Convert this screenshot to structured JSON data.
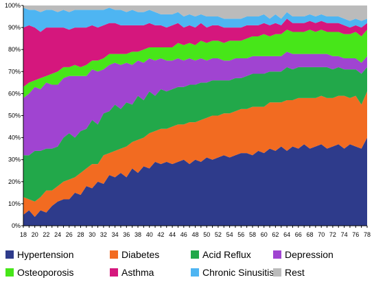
{
  "chart_data": {
    "type": "area",
    "stacked": true,
    "normalized_percent": true,
    "title": "",
    "xlabel": "",
    "ylabel": "",
    "ylim": [
      0,
      100
    ],
    "x": [
      18,
      19,
      20,
      21,
      22,
      23,
      24,
      25,
      26,
      27,
      28,
      29,
      30,
      31,
      32,
      33,
      34,
      35,
      36,
      37,
      38,
      39,
      40,
      41,
      42,
      43,
      44,
      45,
      46,
      47,
      48,
      49,
      50,
      51,
      52,
      53,
      54,
      55,
      56,
      57,
      58,
      59,
      60,
      61,
      62,
      63,
      64,
      65,
      66,
      67,
      68,
      69,
      70,
      71,
      72,
      73,
      74,
      75,
      76,
      77,
      78
    ],
    "x_tick_labels": [
      "18",
      "20",
      "22",
      "24",
      "26",
      "28",
      "30",
      "32",
      "34",
      "36",
      "38",
      "40",
      "42",
      "44",
      "46",
      "48",
      "50",
      "52",
      "54",
      "56",
      "58",
      "60",
      "62",
      "64",
      "66",
      "68",
      "70",
      "72",
      "74",
      "76",
      "78"
    ],
    "y_tick_labels": [
      "0%",
      "10%",
      "20%",
      "30%",
      "40%",
      "50%",
      "60%",
      "70%",
      "80%",
      "90%",
      "100%"
    ],
    "grid": false,
    "legend_position": "bottom",
    "series": [
      {
        "name": "Hypertension",
        "color": "#2E3B8B",
        "values": [
          5,
          7,
          4,
          7,
          6,
          9,
          11,
          12,
          12,
          15,
          14,
          18,
          17,
          20,
          19,
          23,
          22,
          24,
          22,
          26,
          24,
          27,
          26,
          29,
          28,
          29,
          28,
          29,
          30,
          28,
          30,
          29,
          31,
          30,
          31,
          32,
          31,
          32,
          33,
          33,
          32,
          34,
          33,
          35,
          34,
          36,
          34,
          36,
          35,
          37,
          35,
          36,
          37,
          35,
          36,
          37,
          35,
          37,
          36,
          35,
          40
        ]
      },
      {
        "name": "Diabetes",
        "color": "#F26B21",
        "values": [
          8,
          5,
          7,
          6,
          10,
          7,
          7,
          8,
          9,
          7,
          10,
          8,
          11,
          8,
          13,
          10,
          12,
          11,
          14,
          12,
          15,
          13,
          16,
          14,
          16,
          15,
          17,
          17,
          16,
          19,
          17,
          19,
          18,
          20,
          19,
          19,
          20,
          20,
          20,
          20,
          22,
          20,
          21,
          21,
          22,
          20,
          23,
          21,
          23,
          21,
          23,
          22,
          22,
          23,
          22,
          22,
          24,
          21,
          23,
          20,
          21
        ]
      },
      {
        "name": "Acid Reflux",
        "color": "#22A84A",
        "values": [
          19,
          20,
          23,
          21,
          19,
          19,
          18,
          20,
          21,
          18,
          19,
          18,
          20,
          18,
          19,
          19,
          21,
          18,
          20,
          17,
          20,
          17,
          19,
          16,
          18,
          17,
          17,
          17,
          17,
          17,
          17,
          17,
          16,
          16,
          16,
          15,
          15,
          15,
          14,
          15,
          15,
          15,
          15,
          14,
          14,
          14,
          15,
          14,
          14,
          14,
          14,
          14,
          13,
          14,
          13,
          13,
          12,
          13,
          12,
          14,
          11
        ]
      },
      {
        "name": "Depression",
        "color": "#A044D1",
        "values": [
          26,
          28,
          29,
          28,
          30,
          29,
          28,
          27,
          26,
          28,
          25,
          24,
          23,
          24,
          20,
          21,
          19,
          20,
          18,
          18,
          16,
          17,
          15,
          16,
          14,
          14,
          13,
          13,
          12,
          12,
          11,
          11,
          10,
          10,
          10,
          9,
          9,
          9,
          9,
          8,
          8,
          8,
          8,
          7,
          7,
          7,
          7,
          7,
          6,
          6,
          6,
          6,
          6,
          6,
          6,
          5,
          5,
          5,
          5,
          5,
          5
        ]
      },
      {
        "name": "Osteoporosis",
        "color": "#47E619",
        "values": [
          5,
          5,
          3,
          5,
          3,
          5,
          6,
          5,
          4,
          5,
          4,
          5,
          4,
          5,
          5,
          5,
          4,
          5,
          4,
          6,
          4,
          6,
          5,
          6,
          5,
          6,
          6,
          7,
          7,
          7,
          7,
          8,
          8,
          8,
          8,
          8,
          9,
          8,
          8,
          9,
          9,
          9,
          10,
          9,
          10,
          10,
          10,
          10,
          10,
          10,
          11,
          10,
          11,
          10,
          11,
          11,
          11,
          11,
          12,
          12,
          12
        ]
      },
      {
        "name": "Asthma",
        "color": "#D5177D",
        "values": [
          27,
          26,
          24,
          21,
          22,
          21,
          20,
          18,
          17,
          17,
          18,
          17,
          16,
          15,
          15,
          14,
          14,
          13,
          13,
          12,
          12,
          11,
          11,
          10,
          10,
          9,
          10,
          9,
          8,
          8,
          8,
          8,
          7,
          7,
          7,
          7,
          6,
          6,
          6,
          6,
          5,
          5,
          5,
          5,
          5,
          4,
          5,
          4,
          4,
          4,
          4,
          4,
          4,
          4,
          4,
          4,
          4,
          3,
          3,
          4,
          3
        ]
      },
      {
        "name": "Chronic Sinusitis",
        "color": "#4EB5F2",
        "values": [
          9,
          7,
          8,
          9,
          8,
          8,
          7,
          8,
          8,
          8,
          8,
          8,
          7,
          8,
          7,
          7,
          6,
          7,
          6,
          7,
          6,
          6,
          6,
          6,
          5,
          6,
          5,
          5,
          5,
          5,
          5,
          4,
          5,
          4,
          4,
          4,
          4,
          4,
          4,
          4,
          4,
          4,
          4,
          3,
          4,
          3,
          3,
          3,
          3,
          3,
          3,
          3,
          3,
          3,
          3,
          3,
          3,
          3,
          3,
          3,
          2
        ]
      },
      {
        "name": "Rest",
        "color": "#BBBBBB",
        "values": [
          1,
          2,
          2,
          3,
          2,
          2,
          3,
          2,
          3,
          2,
          2,
          2,
          2,
          2,
          2,
          1,
          2,
          2,
          3,
          2,
          3,
          3,
          2,
          3,
          4,
          4,
          4,
          3,
          5,
          4,
          5,
          4,
          5,
          5,
          5,
          6,
          6,
          6,
          6,
          5,
          5,
          5,
          4,
          6,
          4,
          6,
          3,
          5,
          5,
          5,
          4,
          5,
          4,
          5,
          5,
          5,
          6,
          7,
          6,
          7,
          6
        ]
      }
    ]
  }
}
